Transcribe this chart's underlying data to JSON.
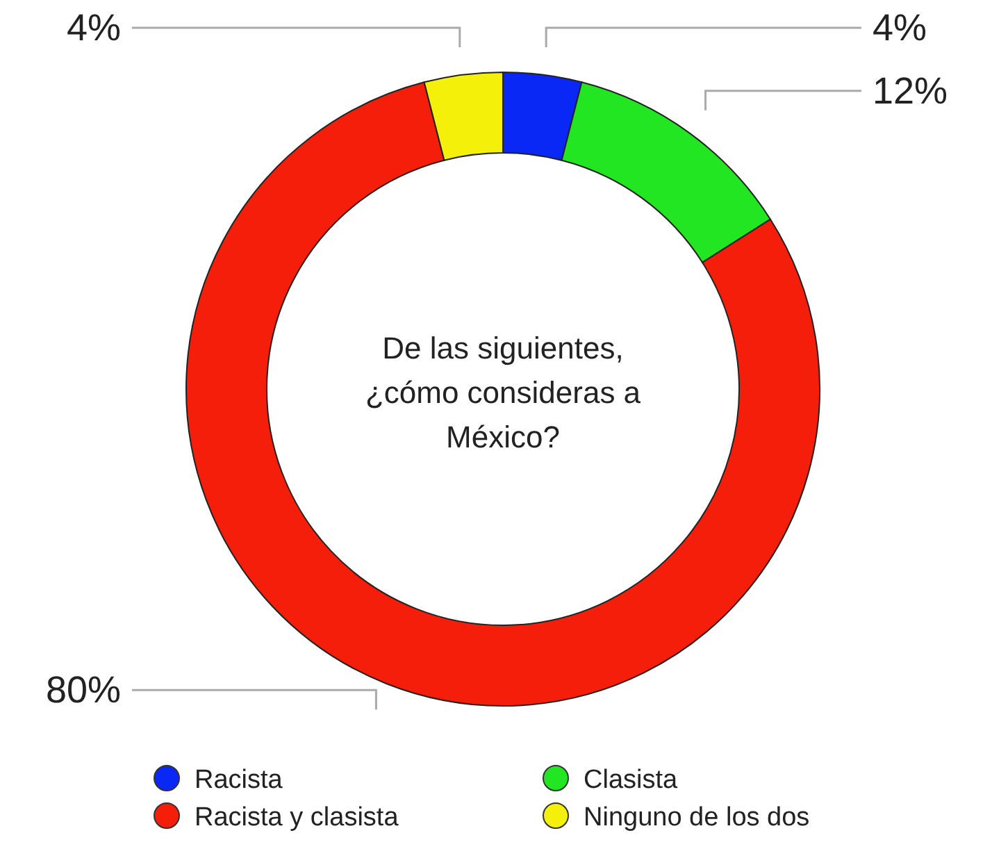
{
  "chart_data": {
    "type": "donut",
    "title": "De las siguientes, ¿cómo consideras a México?",
    "categories": [
      "Racista",
      "Clasista",
      "Racista y clasista",
      "Ninguno de los dos"
    ],
    "values": [
      4,
      12,
      80,
      4
    ],
    "value_labels": [
      "4%",
      "12%",
      "80%",
      "4%"
    ],
    "colors": [
      "#0a28f5",
      "#22e622",
      "#f51e0a",
      "#f5f00a"
    ],
    "legend": "bottom"
  }
}
